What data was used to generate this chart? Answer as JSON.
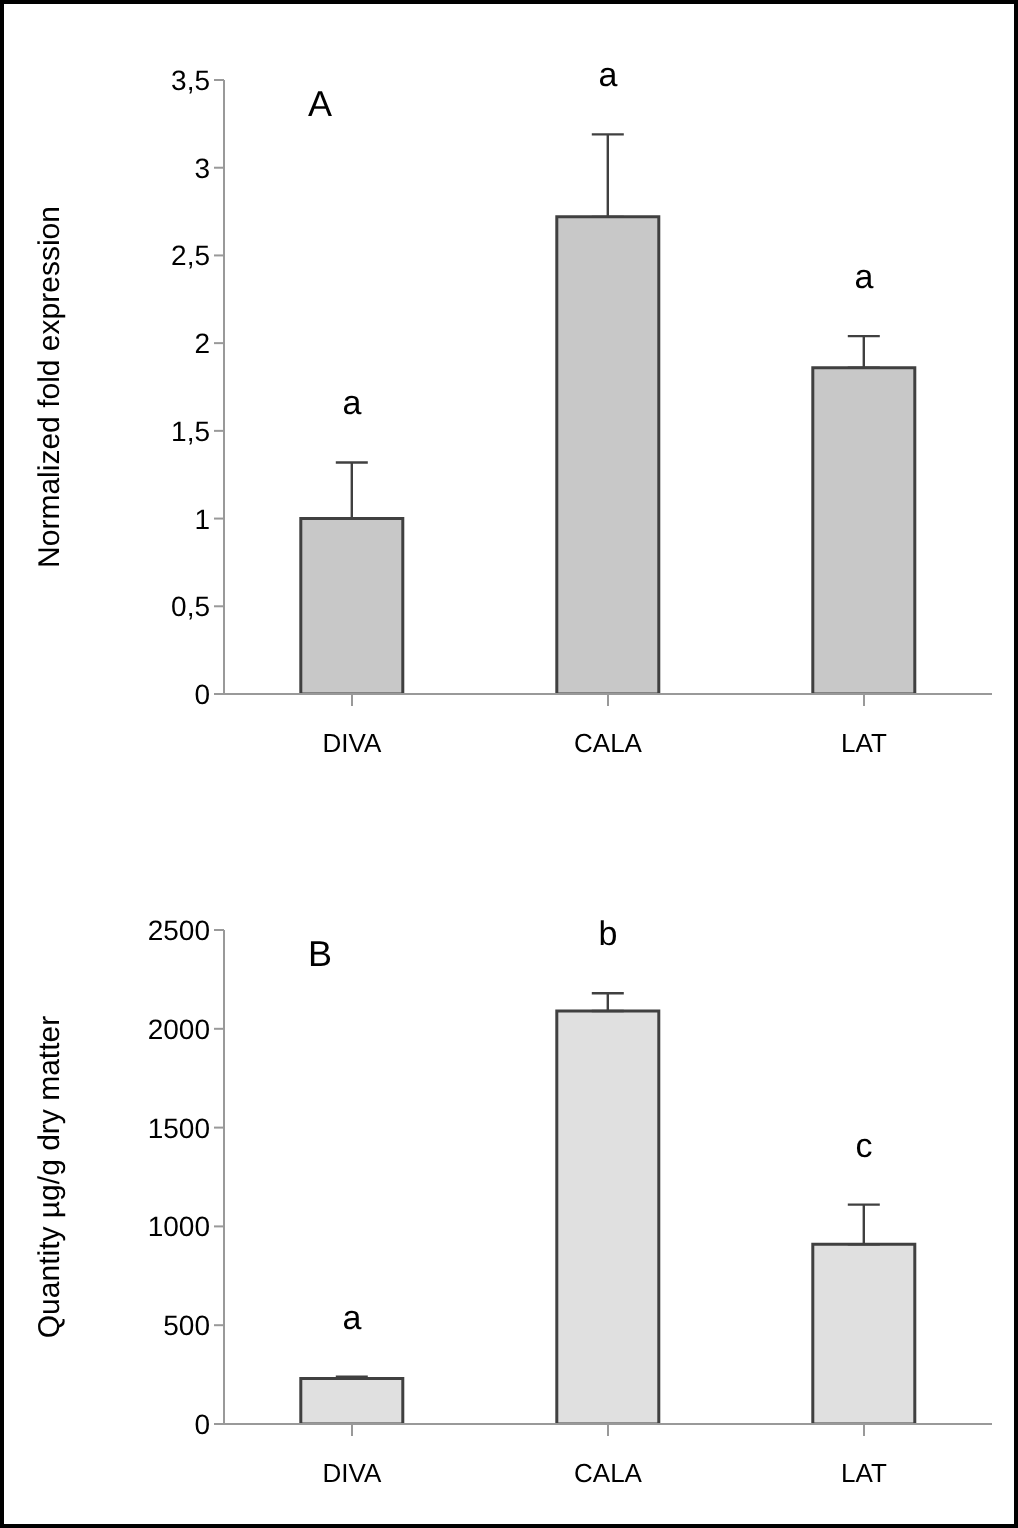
{
  "chart_data": [
    {
      "type": "bar",
      "ylabel": "Normalized fold expression",
      "categories": [
        "DIVA",
        "CALA",
        "LAT"
      ],
      "values": [
        1.0,
        2.72,
        1.86
      ],
      "color": "#c8c8c8",
      "errors": [
        [
          1.0,
          1.32
        ],
        [
          2.72,
          3.19
        ],
        [
          1.86,
          2.04
        ]
      ],
      "ylim": [
        0,
        3.5
      ],
      "yticks": [
        {
          "value": 0,
          "label": "0"
        },
        {
          "value": 0.5,
          "label": "0,5"
        },
        {
          "value": 1,
          "label": "1"
        },
        {
          "value": 1.5,
          "label": "1,5"
        },
        {
          "value": 2,
          "label": "2"
        },
        {
          "value": 2.5,
          "label": "2,5"
        },
        {
          "value": 3,
          "label": "3"
        },
        {
          "value": 3.5,
          "label": "3,5"
        }
      ],
      "grid": false,
      "annotations": [
        "A",
        "a",
        "a",
        "a"
      ]
    },
    {
      "type": "bar",
      "ylabel": "Quantity µg/g dry matter",
      "categories": [
        "DIVA",
        "CALA",
        "LAT"
      ],
      "values": [
        230,
        2090,
        910
      ],
      "color": "#e0e0e0",
      "errors": [
        [
          230,
          240
        ],
        [
          2090,
          2180
        ],
        [
          910,
          1110
        ]
      ],
      "ylim": [
        0,
        2500
      ],
      "yticks": [
        0,
        500,
        1000,
        1500,
        2000,
        2500
      ],
      "grid": false,
      "annotations": [
        "B",
        "a",
        "b",
        "c"
      ]
    }
  ]
}
